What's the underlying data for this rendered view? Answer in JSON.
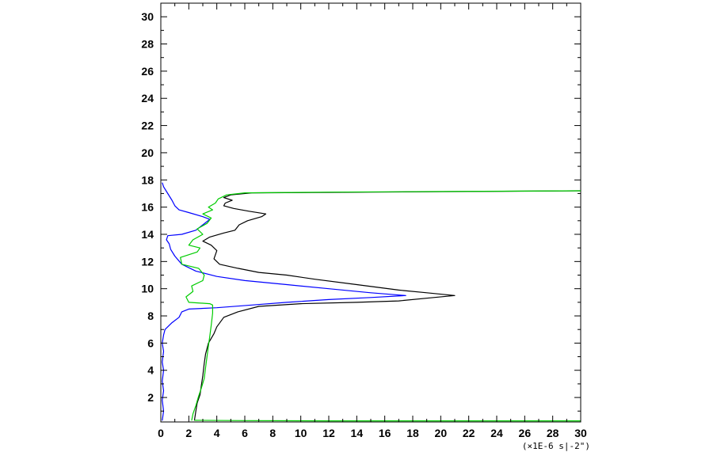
{
  "chart_data": {
    "type": "line",
    "title": "",
    "xlabel": "",
    "ylabel": "",
    "x_unit_label": "(×1E-6 s|-2\")",
    "xlim": [
      0,
      30
    ],
    "ylim": [
      0.2,
      31
    ],
    "x_ticks": [
      0,
      2,
      4,
      6,
      8,
      10,
      12,
      14,
      16,
      18,
      20,
      22,
      24,
      26,
      28,
      30
    ],
    "y_ticks": [
      2,
      4,
      6,
      8,
      10,
      12,
      14,
      16,
      18,
      20,
      22,
      24,
      26,
      28,
      30
    ],
    "grid": false,
    "legend": "none",
    "series": [
      {
        "color": "#000000",
        "points": [
          [
            2.4,
            0.3
          ],
          [
            2.5,
            1.0
          ],
          [
            2.6,
            1.6
          ],
          [
            2.8,
            2.2
          ],
          [
            2.9,
            2.9
          ],
          [
            3.0,
            3.6
          ],
          [
            3.1,
            4.5
          ],
          [
            3.2,
            5.2
          ],
          [
            3.4,
            6.0
          ],
          [
            3.8,
            6.7
          ],
          [
            4.0,
            7.2
          ],
          [
            4.5,
            7.9
          ],
          [
            5.5,
            8.3
          ],
          [
            7.0,
            8.7
          ],
          [
            10.0,
            8.9
          ],
          [
            14.0,
            9.0
          ],
          [
            17.0,
            9.1
          ],
          [
            19.5,
            9.35
          ],
          [
            21.0,
            9.5
          ],
          [
            19.0,
            9.7
          ],
          [
            17.0,
            9.9
          ],
          [
            14.0,
            10.3
          ],
          [
            11.0,
            10.7
          ],
          [
            9.0,
            11.0
          ],
          [
            7.0,
            11.2
          ],
          [
            5.5,
            11.5
          ],
          [
            4.2,
            11.8
          ],
          [
            3.8,
            12.2
          ],
          [
            4.0,
            12.8
          ],
          [
            3.6,
            13.2
          ],
          [
            3.0,
            13.5
          ],
          [
            3.5,
            13.8
          ],
          [
            4.5,
            14.1
          ],
          [
            5.3,
            14.3
          ],
          [
            5.6,
            14.7
          ],
          [
            6.2,
            15.0
          ],
          [
            7.2,
            15.3
          ],
          [
            7.5,
            15.5
          ],
          [
            6.3,
            15.7
          ],
          [
            5.2,
            15.9
          ],
          [
            4.5,
            16.1
          ],
          [
            4.6,
            16.3
          ],
          [
            5.1,
            16.5
          ],
          [
            4.5,
            16.7
          ],
          [
            5.0,
            16.9
          ],
          [
            6.5,
            17.05
          ],
          [
            15.0,
            17.1
          ],
          [
            22.0,
            17.15
          ],
          [
            30.0,
            17.2
          ]
        ]
      },
      {
        "color": "#0000ff",
        "points": [
          [
            0.1,
            0.3
          ],
          [
            0.2,
            1.0
          ],
          [
            0.1,
            1.8
          ],
          [
            0.2,
            2.5
          ],
          [
            0.1,
            3.2
          ],
          [
            0.2,
            4.0
          ],
          [
            0.1,
            4.6
          ],
          [
            0.2,
            5.4
          ],
          [
            0.1,
            6.0
          ],
          [
            0.2,
            6.6
          ],
          [
            0.3,
            7.0
          ],
          [
            0.8,
            7.5
          ],
          [
            1.3,
            7.9
          ],
          [
            1.5,
            8.3
          ],
          [
            2.0,
            8.5
          ],
          [
            4.0,
            8.6
          ],
          [
            6.5,
            8.8
          ],
          [
            9.0,
            9.0
          ],
          [
            12.0,
            9.2
          ],
          [
            15.0,
            9.35
          ],
          [
            17.5,
            9.5
          ],
          [
            15.0,
            9.7
          ],
          [
            12.0,
            10.0
          ],
          [
            9.0,
            10.3
          ],
          [
            6.0,
            10.6
          ],
          [
            4.0,
            10.9
          ],
          [
            2.5,
            11.3
          ],
          [
            1.5,
            11.8
          ],
          [
            1.0,
            12.4
          ],
          [
            0.7,
            12.9
          ],
          [
            0.6,
            13.3
          ],
          [
            0.4,
            13.6
          ],
          [
            0.5,
            13.9
          ],
          [
            1.5,
            14.0
          ],
          [
            2.5,
            14.3
          ],
          [
            3.0,
            14.7
          ],
          [
            3.5,
            15.1
          ],
          [
            3.0,
            15.3
          ],
          [
            2.0,
            15.6
          ],
          [
            1.3,
            15.8
          ],
          [
            1.0,
            16.1
          ],
          [
            0.8,
            16.5
          ],
          [
            0.5,
            17.0
          ],
          [
            0.2,
            17.5
          ],
          [
            0.1,
            17.8
          ]
        ]
      },
      {
        "color": "#00cc00",
        "points": [
          [
            2.2,
            0.3
          ],
          [
            2.3,
            0.8
          ],
          [
            2.5,
            1.4
          ],
          [
            2.7,
            2.1
          ],
          [
            2.9,
            2.7
          ],
          [
            3.1,
            3.4
          ],
          [
            3.2,
            4.2
          ],
          [
            3.3,
            5.0
          ],
          [
            3.4,
            5.8
          ],
          [
            3.5,
            6.5
          ],
          [
            3.6,
            7.3
          ],
          [
            3.7,
            8.2
          ],
          [
            3.7,
            8.8
          ],
          [
            3.5,
            8.9
          ],
          [
            2.0,
            9.0
          ],
          [
            1.8,
            9.4
          ],
          [
            2.3,
            9.8
          ],
          [
            2.2,
            10.2
          ],
          [
            3.0,
            10.6
          ],
          [
            3.1,
            11.0
          ],
          [
            2.7,
            11.5
          ],
          [
            1.5,
            11.8
          ],
          [
            1.4,
            12.3
          ],
          [
            2.6,
            12.7
          ],
          [
            2.8,
            13.0
          ],
          [
            2.0,
            13.2
          ],
          [
            2.3,
            13.6
          ],
          [
            3.0,
            14.0
          ],
          [
            2.6,
            14.4
          ],
          [
            3.3,
            14.8
          ],
          [
            3.6,
            15.2
          ],
          [
            3.0,
            15.5
          ],
          [
            3.7,
            15.8
          ],
          [
            3.4,
            16.0
          ],
          [
            3.9,
            16.3
          ],
          [
            4.1,
            16.6
          ],
          [
            4.7,
            16.9
          ],
          [
            6.0,
            17.05
          ],
          [
            12.0,
            17.1
          ],
          [
            20.0,
            17.15
          ],
          [
            30.0,
            17.2
          ]
        ]
      },
      {
        "color": "#00cc00",
        "points": [
          [
            2.4,
            0.32
          ],
          [
            6.0,
            0.3
          ],
          [
            12.0,
            0.28
          ],
          [
            20.0,
            0.28
          ],
          [
            30.0,
            0.28
          ]
        ]
      }
    ]
  }
}
